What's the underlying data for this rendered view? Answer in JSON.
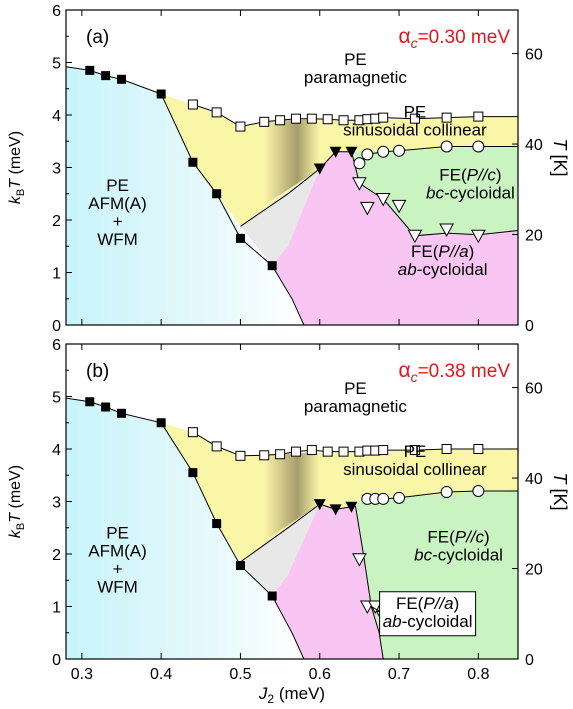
{
  "colors": {
    "afm": "#c8f4fb",
    "pe_sin": "#faf6a8",
    "ab_cyc": "#f9c6f4",
    "bc_cyc": "#c9f4c1",
    "mixed": "#e4e4e4",
    "alpha_label": "#e8141b"
  },
  "chart_data": [
    {
      "type": "scatter",
      "panel_label": "(a)",
      "alpha_symbol": "α",
      "alpha_sub": "c",
      "alpha_value": "=0.30 meV",
      "xlim": [
        0.28,
        0.85
      ],
      "ylim": [
        0,
        6
      ],
      "ylim_right": [
        0,
        69.63
      ],
      "ylabel": {
        "k": "k",
        "sub": "B",
        "T": "T",
        "unit": " (meV)"
      },
      "ylabel_right": {
        "T": "T",
        "unit": " [K]"
      },
      "yticks": [
        "0",
        "1",
        "2",
        "3",
        "4",
        "5",
        "6"
      ],
      "yticks_right": [
        "0",
        "20",
        "40",
        "60"
      ],
      "region_labels": [
        {
          "lines": [
            "PE",
            "paramagnetic"
          ],
          "x": 0.645,
          "y": 4.95
        },
        {
          "lines": [
            "PE",
            "sinusoidal collinear"
          ],
          "x": 0.72,
          "y": 3.95
        },
        {
          "lines": [
            "PE",
            "AFM(A)",
            "+",
            "WFM"
          ],
          "x": 0.345,
          "y": 2.55
        },
        {
          "lines": [
            "FE(P//c)",
            "bc-cycloidal"
          ],
          "x": 0.79,
          "y": 2.75
        },
        {
          "lines": [
            "FE(P//a)",
            "ab-cycloidal"
          ],
          "x": 0.755,
          "y": 1.3
        }
      ],
      "series": [
        {
          "marker": "filled-square",
          "x": [
            0.31,
            0.33,
            0.35,
            0.4,
            0.44,
            0.47,
            0.5,
            0.54
          ],
          "y": [
            4.85,
            4.75,
            4.68,
            4.4,
            3.1,
            2.5,
            1.65,
            1.13
          ]
        },
        {
          "marker": "open-square",
          "x": [
            0.44,
            0.47,
            0.5,
            0.53,
            0.55,
            0.57,
            0.59,
            0.61,
            0.63,
            0.65,
            0.66,
            0.67,
            0.68,
            0.72,
            0.76,
            0.8
          ],
          "y": [
            4.2,
            4.05,
            3.78,
            3.87,
            3.9,
            3.93,
            3.93,
            3.92,
            3.9,
            3.9,
            3.92,
            3.93,
            3.95,
            3.93,
            3.95,
            3.97
          ]
        },
        {
          "marker": "filled-triangle-down",
          "x": [
            0.6,
            0.62,
            0.64
          ],
          "y": [
            2.98,
            3.3,
            3.3
          ]
        },
        {
          "marker": "open-circle",
          "x": [
            0.65,
            0.66,
            0.68,
            0.7,
            0.76,
            0.8
          ],
          "y": [
            3.08,
            3.25,
            3.3,
            3.32,
            3.4,
            3.4
          ]
        },
        {
          "marker": "open-triangle-down",
          "x": [
            0.65,
            0.66,
            0.68,
            0.7,
            0.72,
            0.76,
            0.8
          ],
          "y": [
            2.7,
            2.23,
            2.4,
            2.27,
            1.7,
            1.82,
            1.7
          ]
        }
      ]
    },
    {
      "type": "scatter",
      "panel_label": "(b)",
      "alpha_symbol": "α",
      "alpha_sub": "c",
      "alpha_value": "=0.38 meV",
      "xlim": [
        0.28,
        0.85
      ],
      "ylim": [
        0,
        6
      ],
      "ylim_right": [
        0,
        69.63
      ],
      "xlabel": {
        "J": "J",
        "sub": "2",
        "unit": " (meV)"
      },
      "xticks": [
        "0.3",
        "0.4",
        "0.5",
        "0.6",
        "0.7",
        "0.8"
      ],
      "ylabel": {
        "k": "k",
        "sub": "B",
        "T": "T",
        "unit": " (meV)"
      },
      "ylabel_right": {
        "T": "T",
        "unit": " [K]"
      },
      "yticks": [
        "0",
        "1",
        "2",
        "3",
        "4",
        "5",
        "6"
      ],
      "yticks_right": [
        "0",
        "20",
        "40",
        "60"
      ],
      "region_labels": [
        {
          "lines": [
            "PE",
            "paramagnetic"
          ],
          "x": 0.645,
          "y": 5.05
        },
        {
          "lines": [
            "PE",
            "sinusoidal collinear"
          ],
          "x": 0.72,
          "y": 3.85
        },
        {
          "lines": [
            "PE",
            "AFM(A)",
            "+",
            "WFM"
          ],
          "x": 0.345,
          "y": 2.3
        },
        {
          "lines": [
            "FE(P//c)",
            "bc-cycloidal"
          ],
          "x": 0.775,
          "y": 2.22
        }
      ],
      "boxed_label": {
        "lines": [
          "FE(P//a)",
          "ab-cycloidal"
        ],
        "x": 0.736,
        "y": 0.9
      },
      "series": [
        {
          "marker": "filled-square",
          "x": [
            0.31,
            0.33,
            0.35,
            0.4,
            0.44,
            0.47,
            0.5,
            0.54
          ],
          "y": [
            4.9,
            4.8,
            4.68,
            4.5,
            3.55,
            2.58,
            1.78,
            1.2
          ]
        },
        {
          "marker": "open-square",
          "x": [
            0.44,
            0.47,
            0.5,
            0.53,
            0.55,
            0.57,
            0.59,
            0.61,
            0.63,
            0.65,
            0.66,
            0.67,
            0.68,
            0.72,
            0.76,
            0.8
          ],
          "y": [
            4.32,
            4.05,
            3.87,
            3.88,
            3.9,
            3.95,
            3.98,
            3.95,
            3.95,
            3.95,
            3.97,
            3.97,
            3.98,
            3.98,
            4.0,
            4.0
          ]
        },
        {
          "marker": "filled-triangle-down",
          "x": [
            0.6,
            0.62,
            0.64
          ],
          "y": [
            2.95,
            2.85,
            2.9
          ]
        },
        {
          "marker": "open-circle",
          "x": [
            0.66,
            0.67,
            0.68,
            0.7,
            0.76,
            0.8
          ],
          "y": [
            3.05,
            3.05,
            3.05,
            3.07,
            3.18,
            3.2
          ]
        },
        {
          "marker": "open-triangle-down",
          "x": [
            0.65,
            0.66,
            0.67,
            0.68
          ],
          "y": [
            1.9,
            1.0,
            1.0,
            0.8
          ]
        }
      ]
    }
  ]
}
